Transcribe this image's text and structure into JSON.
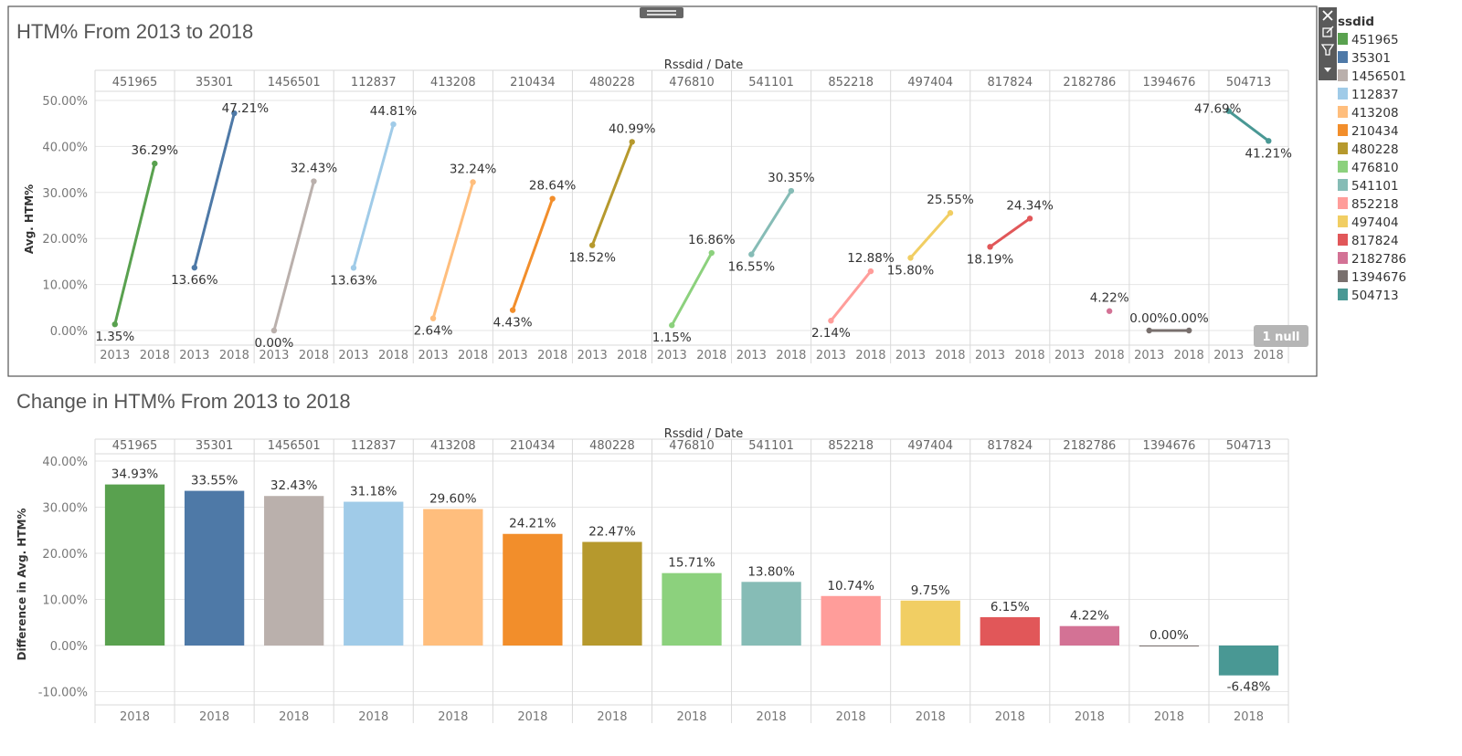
{
  "colors": {
    "451965": "#59a14f",
    "35301": "#4e79a7",
    "1456501": "#bab0ac",
    "112837": "#a0cbe8",
    "413208": "#ffbe7d",
    "210434": "#f28e2b",
    "480228": "#b6992d",
    "476810": "#8cd17d",
    "541101": "#86bcb6",
    "852218": "#ff9d9a",
    "497404": "#f1ce63",
    "817824": "#e15759",
    "2182786": "#d37295",
    "1394676": "#79706e",
    "504713": "#499894"
  },
  "legend": {
    "title": "ssdid",
    "items": [
      "451965",
      "35301",
      "1456501",
      "112837",
      "413208",
      "210434",
      "480228",
      "476810",
      "541101",
      "852218",
      "497404",
      "817824",
      "2182786",
      "1394676",
      "504713"
    ]
  },
  "toolbar": {
    "icons": [
      "close-icon",
      "popout-icon",
      "filter-icon",
      "menu-arrow-icon"
    ]
  },
  "null_badge": "1 null",
  "chart_data": [
    {
      "type": "line",
      "title": "HTM% From 2013 to 2018",
      "header": "Rssdid / Date",
      "ylabel": "Avg. HTM%",
      "ylim": [
        0,
        50
      ],
      "yticks": [
        "0.00%",
        "10.00%",
        "20.00%",
        "30.00%",
        "40.00%",
        "50.00%"
      ],
      "x": [
        "2013",
        "2018"
      ],
      "series": [
        {
          "name": "451965",
          "values": [
            1.35,
            36.29
          ],
          "labels": [
            "1.35%",
            "36.29%"
          ]
        },
        {
          "name": "35301",
          "values": [
            13.66,
            47.21
          ],
          "labels": [
            "13.66%",
            "47.21%"
          ]
        },
        {
          "name": "1456501",
          "values": [
            0.0,
            32.43
          ],
          "labels": [
            "0.00%",
            "32.43%"
          ]
        },
        {
          "name": "112837",
          "values": [
            13.63,
            44.81
          ],
          "labels": [
            "13.63%",
            "44.81%"
          ]
        },
        {
          "name": "413208",
          "values": [
            2.64,
            32.24
          ],
          "labels": [
            "2.64%",
            "32.24%"
          ]
        },
        {
          "name": "210434",
          "values": [
            4.43,
            28.64
          ],
          "labels": [
            "4.43%",
            "28.64%"
          ]
        },
        {
          "name": "480228",
          "values": [
            18.52,
            40.99
          ],
          "labels": [
            "18.52%",
            "40.99%"
          ]
        },
        {
          "name": "476810",
          "values": [
            1.15,
            16.86
          ],
          "labels": [
            "1.15%",
            "16.86%"
          ]
        },
        {
          "name": "541101",
          "values": [
            16.55,
            30.35
          ],
          "labels": [
            "16.55%",
            "30.35%"
          ]
        },
        {
          "name": "852218",
          "values": [
            2.14,
            12.88
          ],
          "labels": [
            "2.14%",
            "12.88%"
          ]
        },
        {
          "name": "497404",
          "values": [
            15.8,
            25.55
          ],
          "labels": [
            "15.80%",
            "25.55%"
          ]
        },
        {
          "name": "817824",
          "values": [
            18.19,
            24.34
          ],
          "labels": [
            "18.19%",
            "24.34%"
          ]
        },
        {
          "name": "2182786",
          "values": [
            null,
            4.22
          ],
          "labels": [
            "",
            "4.22%"
          ]
        },
        {
          "name": "1394676",
          "values": [
            0.0,
            0.0
          ],
          "labels": [
            "0.00%",
            "0.00%"
          ]
        },
        {
          "name": "504713",
          "values": [
            47.69,
            41.21
          ],
          "labels": [
            "47.69%",
            "41.21%"
          ]
        }
      ]
    },
    {
      "type": "bar",
      "title": "Change in HTM% From 2013 to 2018",
      "header": "Rssdid / Date",
      "ylabel": "Difference in Avg. HTM%",
      "ylim": [
        -10,
        40
      ],
      "yticks": [
        "-10.00%",
        "0.00%",
        "10.00%",
        "20.00%",
        "30.00%",
        "40.00%"
      ],
      "x": [
        "2018"
      ],
      "categories": [
        "451965",
        "35301",
        "1456501",
        "112837",
        "413208",
        "210434",
        "480228",
        "476810",
        "541101",
        "852218",
        "497404",
        "817824",
        "2182786",
        "1394676",
        "504713"
      ],
      "values": [
        34.93,
        33.55,
        32.43,
        31.18,
        29.6,
        24.21,
        22.47,
        15.71,
        13.8,
        10.74,
        9.75,
        6.15,
        4.22,
        0.0,
        -6.48
      ],
      "labels": [
        "34.93%",
        "33.55%",
        "32.43%",
        "31.18%",
        "29.60%",
        "24.21%",
        "22.47%",
        "15.71%",
        "13.80%",
        "10.74%",
        "9.75%",
        "6.15%",
        "4.22%",
        "0.00%",
        "-6.48%"
      ]
    }
  ]
}
